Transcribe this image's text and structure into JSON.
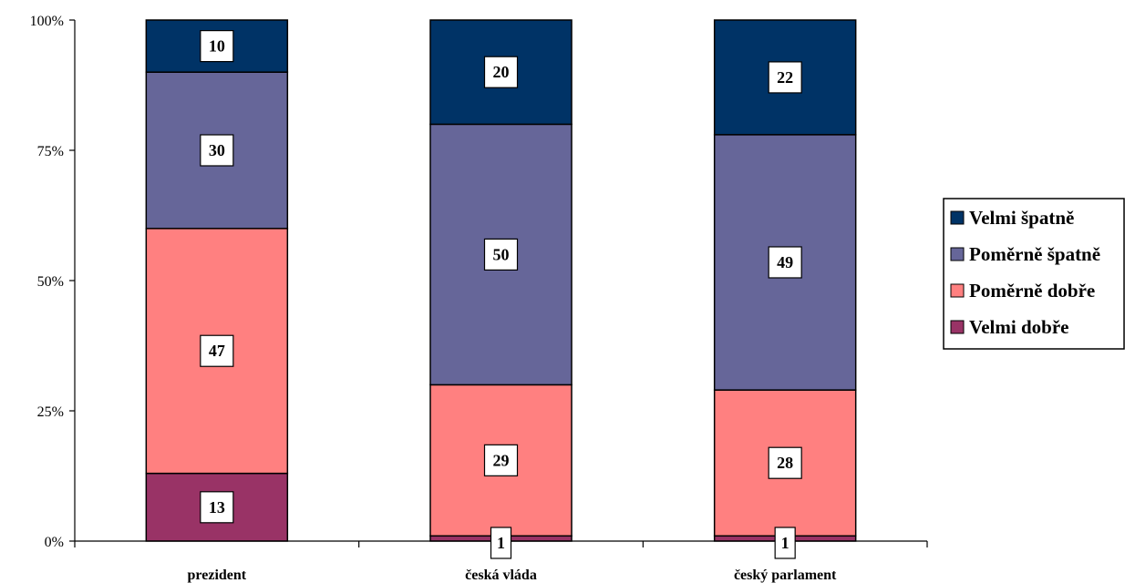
{
  "chart_data": {
    "type": "bar",
    "stacked": true,
    "percent": true,
    "categories": [
      "prezident",
      "česká vláda",
      "český parlament"
    ],
    "series": [
      {
        "name": "Velmi dobře",
        "color": "#993366",
        "values": [
          13,
          1,
          1
        ]
      },
      {
        "name": "Poměrně dobře",
        "color": "#FF8080",
        "values": [
          47,
          29,
          28
        ]
      },
      {
        "name": "Poměrně špatně",
        "color": "#666699",
        "values": [
          30,
          50,
          49
        ]
      },
      {
        "name": "Velmi špatně",
        "color": "#003366",
        "values": [
          10,
          20,
          22
        ]
      }
    ],
    "y_ticks": [
      "0%",
      "25%",
      "50%",
      "75%",
      "100%"
    ],
    "ylim": [
      0,
      100
    ],
    "grid": false,
    "legend": {
      "position": "right",
      "order": [
        "Velmi špatně",
        "Poměrně špatně",
        "Poměrně dobře",
        "Velmi dobře"
      ]
    }
  }
}
